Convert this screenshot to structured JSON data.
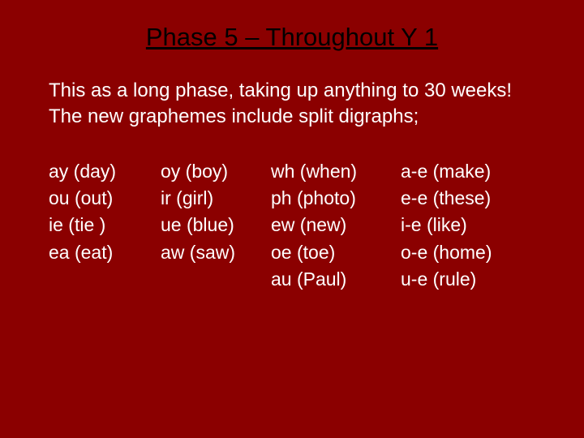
{
  "background_color": "#8b0000",
  "title_color": "#000000",
  "text_color": "#ffffff",
  "title": "Phase 5 – Throughout Y 1",
  "intro_line1": "This as a long phase, taking up anything to 30 weeks!",
  "intro_line2": "The new graphemes include split digraphs;",
  "col1": {
    "r1": "ay (day)",
    "r2": "ou (out)",
    "r3": "ie (tie )",
    "r4": "ea (eat)"
  },
  "col2": {
    "r1": "oy (boy)",
    "r2": "ir  (girl)",
    "r3": "ue (blue)",
    "r4": "aw (saw)"
  },
  "col3": {
    "r1": "wh (when)",
    "r2": "ph (photo)",
    "r3": "ew (new)",
    "r4": "oe (toe)",
    "r5": "au (Paul)"
  },
  "col4": {
    "r1": "a-e (make)",
    "r2": "e-e (these)",
    "r3": " i-e (like)",
    "r4": "o-e (home)",
    "r5": " u-e (rule)"
  }
}
